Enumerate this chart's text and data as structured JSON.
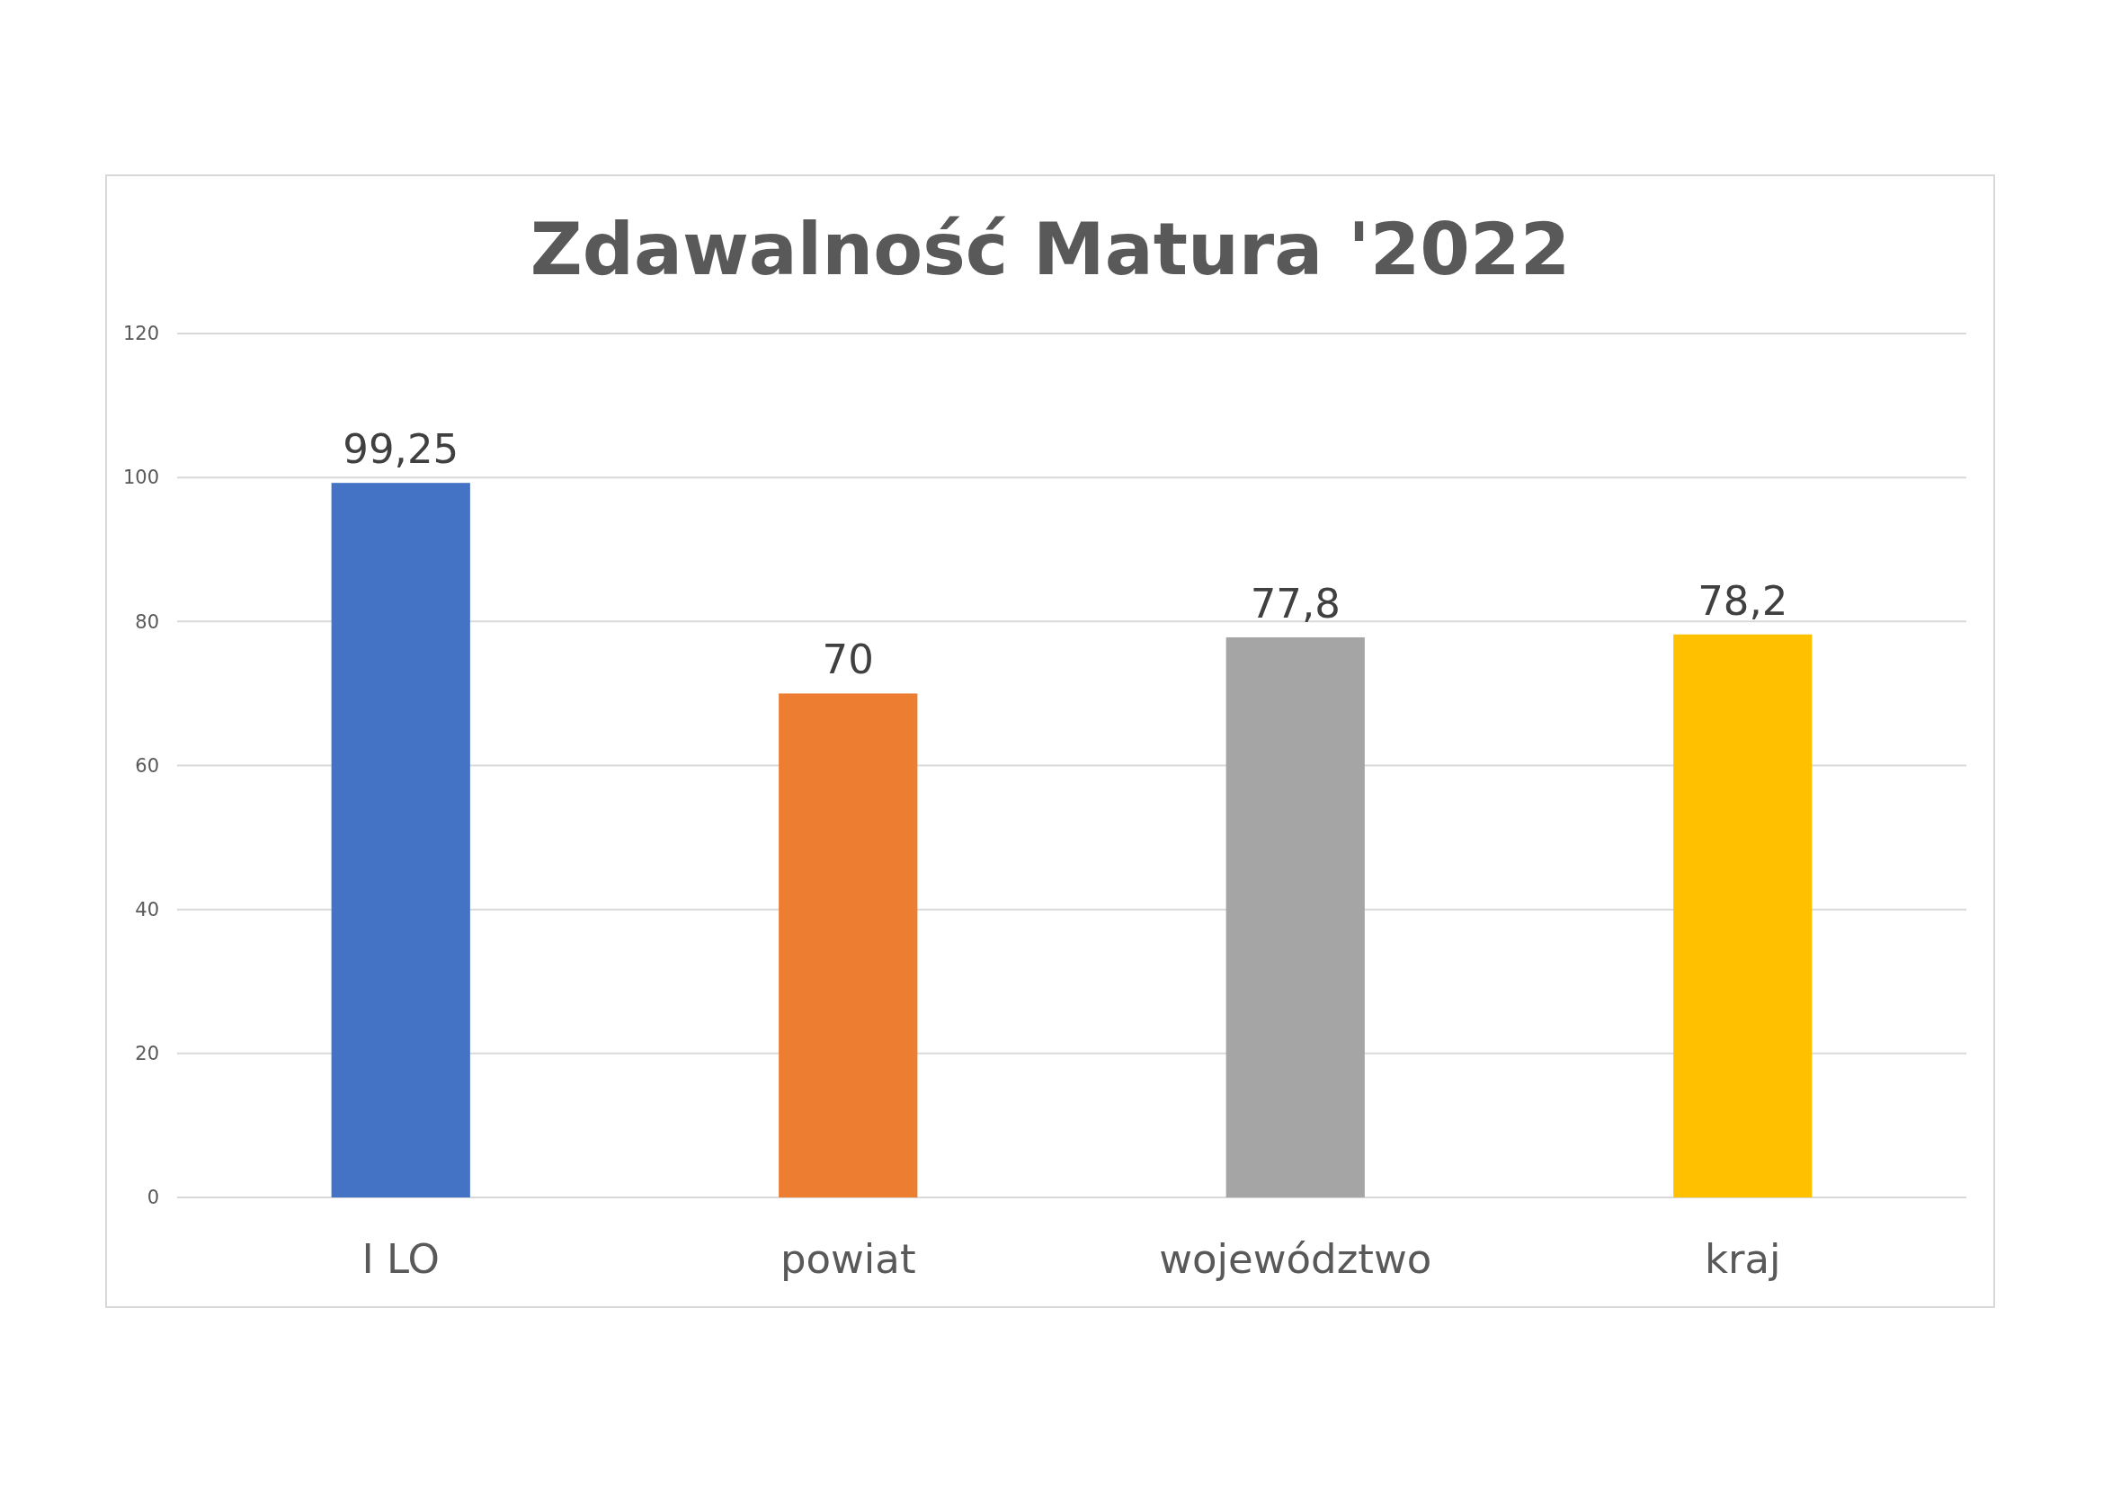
{
  "chart_data": {
    "type": "bar",
    "title": "Zdawalność Matura '2022",
    "categories": [
      "I LO",
      "powiat",
      "województwo",
      "kraj"
    ],
    "values": [
      99.25,
      70,
      77.8,
      78.2
    ],
    "colors": [
      "#4472c4",
      "#ed7d31",
      "#a5a5a5",
      "#ffc000"
    ],
    "value_labels": [
      "99,25",
      "70",
      "77,8",
      "78,2"
    ],
    "ylim": [
      0,
      120
    ],
    "yticks": [
      0,
      20,
      40,
      60,
      80,
      100,
      120
    ],
    "grid": "y"
  }
}
